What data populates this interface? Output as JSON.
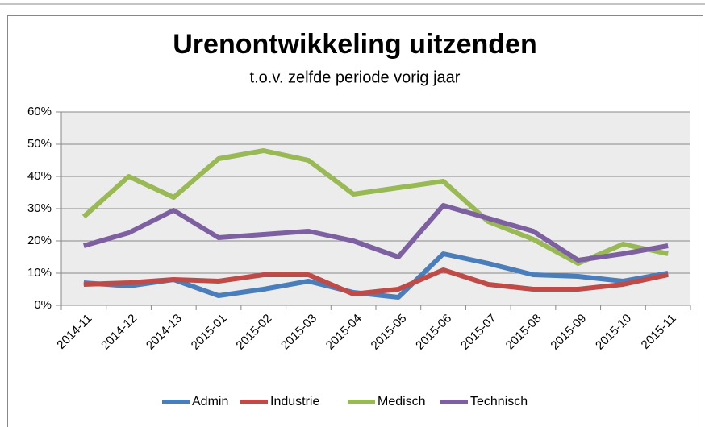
{
  "chart_data": {
    "type": "line",
    "title": "Urenontwikkeling uitzenden",
    "subtitle": "t.o.v. zelfde periode vorig jaar",
    "categories": [
      "2014-11",
      "2014-12",
      "2014-13",
      "2015-01",
      "2015-02",
      "2015-03",
      "2015-04",
      "2015-05",
      "2015-06",
      "2015-07",
      "2015-08",
      "2015-09",
      "2015-10",
      "2015-11"
    ],
    "series": [
      {
        "name": "Admin",
        "color": "#4a7ebb",
        "values": [
          7,
          6,
          8,
          3,
          5,
          7.5,
          4,
          2.5,
          16,
          13,
          9.5,
          9,
          7.5,
          10
        ]
      },
      {
        "name": "Industrie",
        "color": "#be4b48",
        "values": [
          6.5,
          7,
          8,
          7.5,
          9.5,
          9.5,
          3.5,
          5,
          11,
          6.5,
          5,
          5,
          6.5,
          9.5
        ]
      },
      {
        "name": "Medisch",
        "color": "#98b954",
        "values": [
          27.5,
          40,
          33.5,
          45.5,
          48,
          45,
          34.5,
          36.5,
          38.5,
          26,
          20.5,
          13,
          19,
          16
        ]
      },
      {
        "name": "Technisch",
        "color": "#7d60a0",
        "values": [
          18.5,
          22.5,
          29.5,
          21,
          22,
          23,
          20,
          15,
          31,
          27,
          23,
          14,
          16,
          18.5
        ]
      }
    ],
    "ylim": [
      0,
      60
    ],
    "yticks": [
      {
        "value": 0,
        "label": "0%"
      },
      {
        "value": 10,
        "label": "10%"
      },
      {
        "value": 20,
        "label": "20%"
      },
      {
        "value": 30,
        "label": "30%"
      },
      {
        "value": 40,
        "label": "40%"
      },
      {
        "value": 50,
        "label": "50%"
      },
      {
        "value": 60,
        "label": "60%"
      }
    ],
    "grid": true,
    "legend": "bottom"
  }
}
